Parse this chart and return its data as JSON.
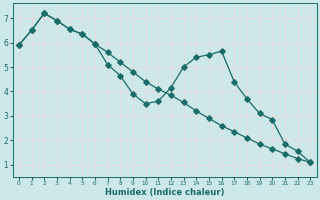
{
  "xlabel": "Humidex (Indice chaleur)",
  "xlim": [
    -0.5,
    23.5
  ],
  "ylim": [
    0.5,
    7.6
  ],
  "xticks": [
    0,
    1,
    2,
    3,
    4,
    5,
    6,
    7,
    8,
    9,
    10,
    11,
    12,
    13,
    14,
    15,
    16,
    17,
    18,
    19,
    20,
    21,
    22,
    23
  ],
  "yticks": [
    1,
    2,
    3,
    4,
    5,
    6,
    7
  ],
  "bg_color": "#cce8e8",
  "grid_color": "#d8eded",
  "line_color": "#1a6b6b",
  "line_straight_x": [
    0,
    1,
    2,
    3,
    4,
    5,
    6,
    7,
    8,
    9,
    10,
    11,
    12,
    13,
    14,
    15,
    16,
    17,
    18,
    19,
    20,
    21,
    22,
    23
  ],
  "line_straight_y": [
    5.9,
    6.5,
    7.2,
    6.9,
    6.55,
    6.35,
    5.95,
    5.6,
    5.2,
    4.8,
    4.4,
    4.1,
    3.85,
    3.55,
    3.2,
    2.9,
    2.6,
    2.35,
    2.1,
    1.85,
    1.65,
    1.45,
    1.25,
    1.1
  ],
  "line_jagged_x": [
    0,
    1,
    2,
    3,
    4,
    5,
    6,
    7,
    8,
    9,
    10,
    11,
    12,
    13,
    14,
    15,
    16,
    17,
    18,
    19,
    20,
    21,
    22,
    23
  ],
  "line_jagged_y": [
    5.9,
    6.5,
    7.2,
    6.9,
    6.55,
    6.35,
    5.95,
    5.1,
    4.65,
    3.9,
    3.5,
    3.6,
    4.15,
    5.0,
    5.4,
    5.5,
    5.65,
    4.4,
    3.7,
    3.1,
    2.85,
    1.85,
    1.55,
    1.1
  ]
}
